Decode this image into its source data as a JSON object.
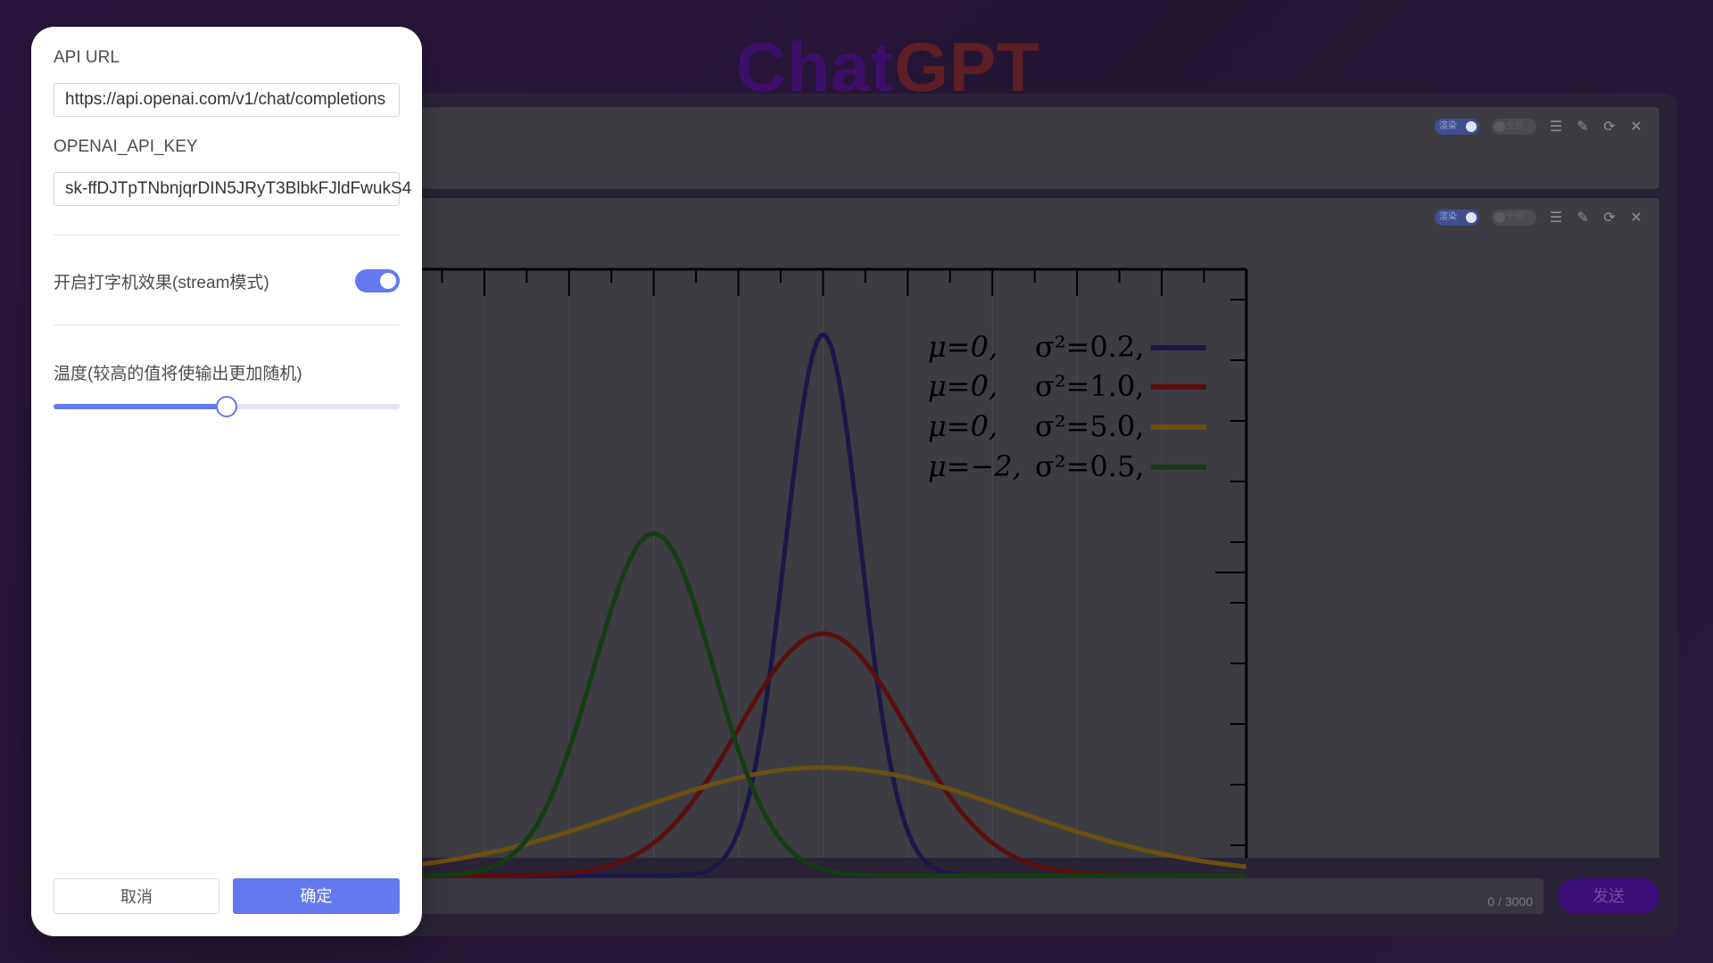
{
  "app": {
    "title_part1": "Chat",
    "title_part2": "GPT"
  },
  "panels": {
    "toggle_on_label": "渲染",
    "toggle_off_label": "全屏",
    "icons": [
      "menu-icon",
      "edit-icon",
      "refresh-icon",
      "close-icon"
    ]
  },
  "chart_data": {
    "type": "line",
    "legend": [
      {
        "mu": "μ=0,",
        "sigma2": "σ²=0.2,",
        "color": "#1b1848"
      },
      {
        "mu": "μ=0,",
        "sigma2": "σ²=1.0,",
        "color": "#5a0f0f"
      },
      {
        "mu": "μ=0,",
        "sigma2": "σ²=5.0,",
        "color": "#6b4e12"
      },
      {
        "mu": "μ=−2,",
        "sigma2": "σ²=0.5,",
        "color": "#143d14"
      }
    ],
    "series": [
      {
        "mu": 0,
        "sigma2": 0.2
      },
      {
        "mu": 0,
        "sigma2": 1.0
      },
      {
        "mu": 0,
        "sigma2": 5.0
      },
      {
        "mu": -2,
        "sigma2": 0.5
      }
    ],
    "xlim": [
      -5,
      5
    ],
    "ylim": [
      0,
      1.0
    ]
  },
  "input": {
    "counter": "0 / 3000"
  },
  "send_button": "发送",
  "dialog": {
    "api_url_label": "API URL",
    "api_url_value": "https://api.openai.com/v1/chat/completions",
    "api_key_label": "OPENAI_API_KEY",
    "api_key_value": "sk-ffDJTpTNbnjqrDIN5JRyT3BlbkFJldFwukS4",
    "stream_label": "开启打字机效果(stream模式)",
    "stream_enabled": true,
    "temperature_label": "温度(较高的值将使输出更加随机)",
    "temperature_value": 0.5,
    "cancel_label": "取消",
    "ok_label": "确定",
    "accent_color": "#6478f0"
  }
}
